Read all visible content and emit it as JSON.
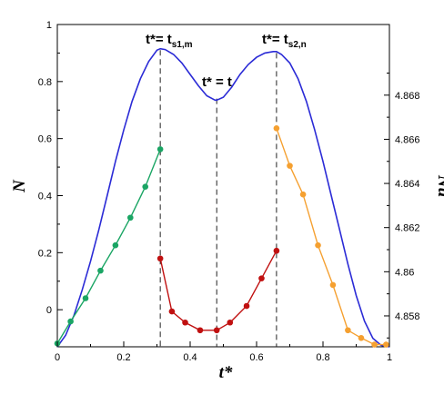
{
  "chart_data": {
    "type": "line",
    "title": "",
    "xlabel": "t*",
    "ylabel_left": "N",
    "ylabel_right": "Nu",
    "xlim": [
      0,
      1
    ],
    "ylim_left": [
      -0.13,
      1.0
    ],
    "ylim_right": [
      4.8566,
      4.8712
    ],
    "grid": false,
    "x_ticks": [
      0,
      0.2,
      0.4,
      0.6,
      0.8,
      1
    ],
    "x_tick_labels": [
      "0",
      "0.2",
      "0.4",
      "0.6",
      "0.8",
      "1"
    ],
    "left_ticks": [
      0,
      0.2,
      0.4,
      0.6,
      0.8,
      1
    ],
    "left_tick_labels": [
      "0",
      "0.2",
      "0.4",
      "0.6",
      "0.8",
      "1"
    ],
    "right_ticks": [
      4.858,
      4.86,
      4.862,
      4.864,
      4.866,
      4.868
    ],
    "right_tick_labels": [
      "4.858",
      "4.86",
      "4.862",
      "4.864",
      "4.866",
      "4.868"
    ],
    "curve": {
      "color": "#2b2bd6",
      "axis": "left",
      "x": [
        0,
        0.025,
        0.05,
        0.075,
        0.1,
        0.125,
        0.15,
        0.175,
        0.2,
        0.225,
        0.25,
        0.275,
        0.3,
        0.31,
        0.325,
        0.35,
        0.375,
        0.4,
        0.425,
        0.45,
        0.475,
        0.48,
        0.5,
        0.525,
        0.55,
        0.575,
        0.6,
        0.625,
        0.65,
        0.66,
        0.675,
        0.7,
        0.725,
        0.75,
        0.775,
        0.8,
        0.825,
        0.85,
        0.875,
        0.9,
        0.925,
        0.95,
        0.975,
        1
      ],
      "y": [
        -0.13,
        -0.09,
        -0.02,
        0.07,
        0.17,
        0.28,
        0.4,
        0.52,
        0.63,
        0.73,
        0.81,
        0.87,
        0.91,
        0.915,
        0.912,
        0.895,
        0.865,
        0.825,
        0.785,
        0.75,
        0.735,
        0.735,
        0.745,
        0.78,
        0.825,
        0.86,
        0.885,
        0.9,
        0.905,
        0.905,
        0.895,
        0.865,
        0.81,
        0.73,
        0.63,
        0.52,
        0.4,
        0.28,
        0.16,
        0.05,
        -0.04,
        -0.1,
        -0.125,
        -0.13
      ]
    },
    "series": [
      {
        "color": "#1aa564",
        "axis": "right",
        "x": [
          0.0,
          0.04,
          0.085,
          0.13,
          0.175,
          0.22,
          0.265,
          0.31
        ],
        "y": [
          4.85675,
          4.85775,
          4.8588,
          4.86005,
          4.8612,
          4.86245,
          4.86385,
          4.86555
        ]
      },
      {
        "color": "#c01010",
        "axis": "right",
        "x": [
          0.31,
          0.345,
          0.385,
          0.43,
          0.48,
          0.52,
          0.57,
          0.615,
          0.66
        ],
        "y": [
          4.8606,
          4.8582,
          4.8577,
          4.85735,
          4.85735,
          4.8577,
          4.85845,
          4.8597,
          4.86095
        ]
      },
      {
        "color": "#f5a030",
        "axis": "right",
        "x": [
          0.66,
          0.7,
          0.74,
          0.785,
          0.83,
          0.875,
          0.915,
          0.955,
          0.99
        ],
        "y": [
          4.8665,
          4.8648,
          4.8635,
          4.8612,
          4.8594,
          4.85735,
          4.857,
          4.8567,
          4.8567
        ]
      }
    ],
    "vlines": [
      0.31,
      0.48,
      0.66
    ],
    "annotations": [
      {
        "main": "t*= t",
        "sub": "s1,m",
        "at_x": 0.31
      },
      {
        "main": "t* = t",
        "sub": "",
        "at_x": 0.48
      },
      {
        "main": "t*= t",
        "sub": "s2,n",
        "at_x": 0.66
      }
    ]
  }
}
